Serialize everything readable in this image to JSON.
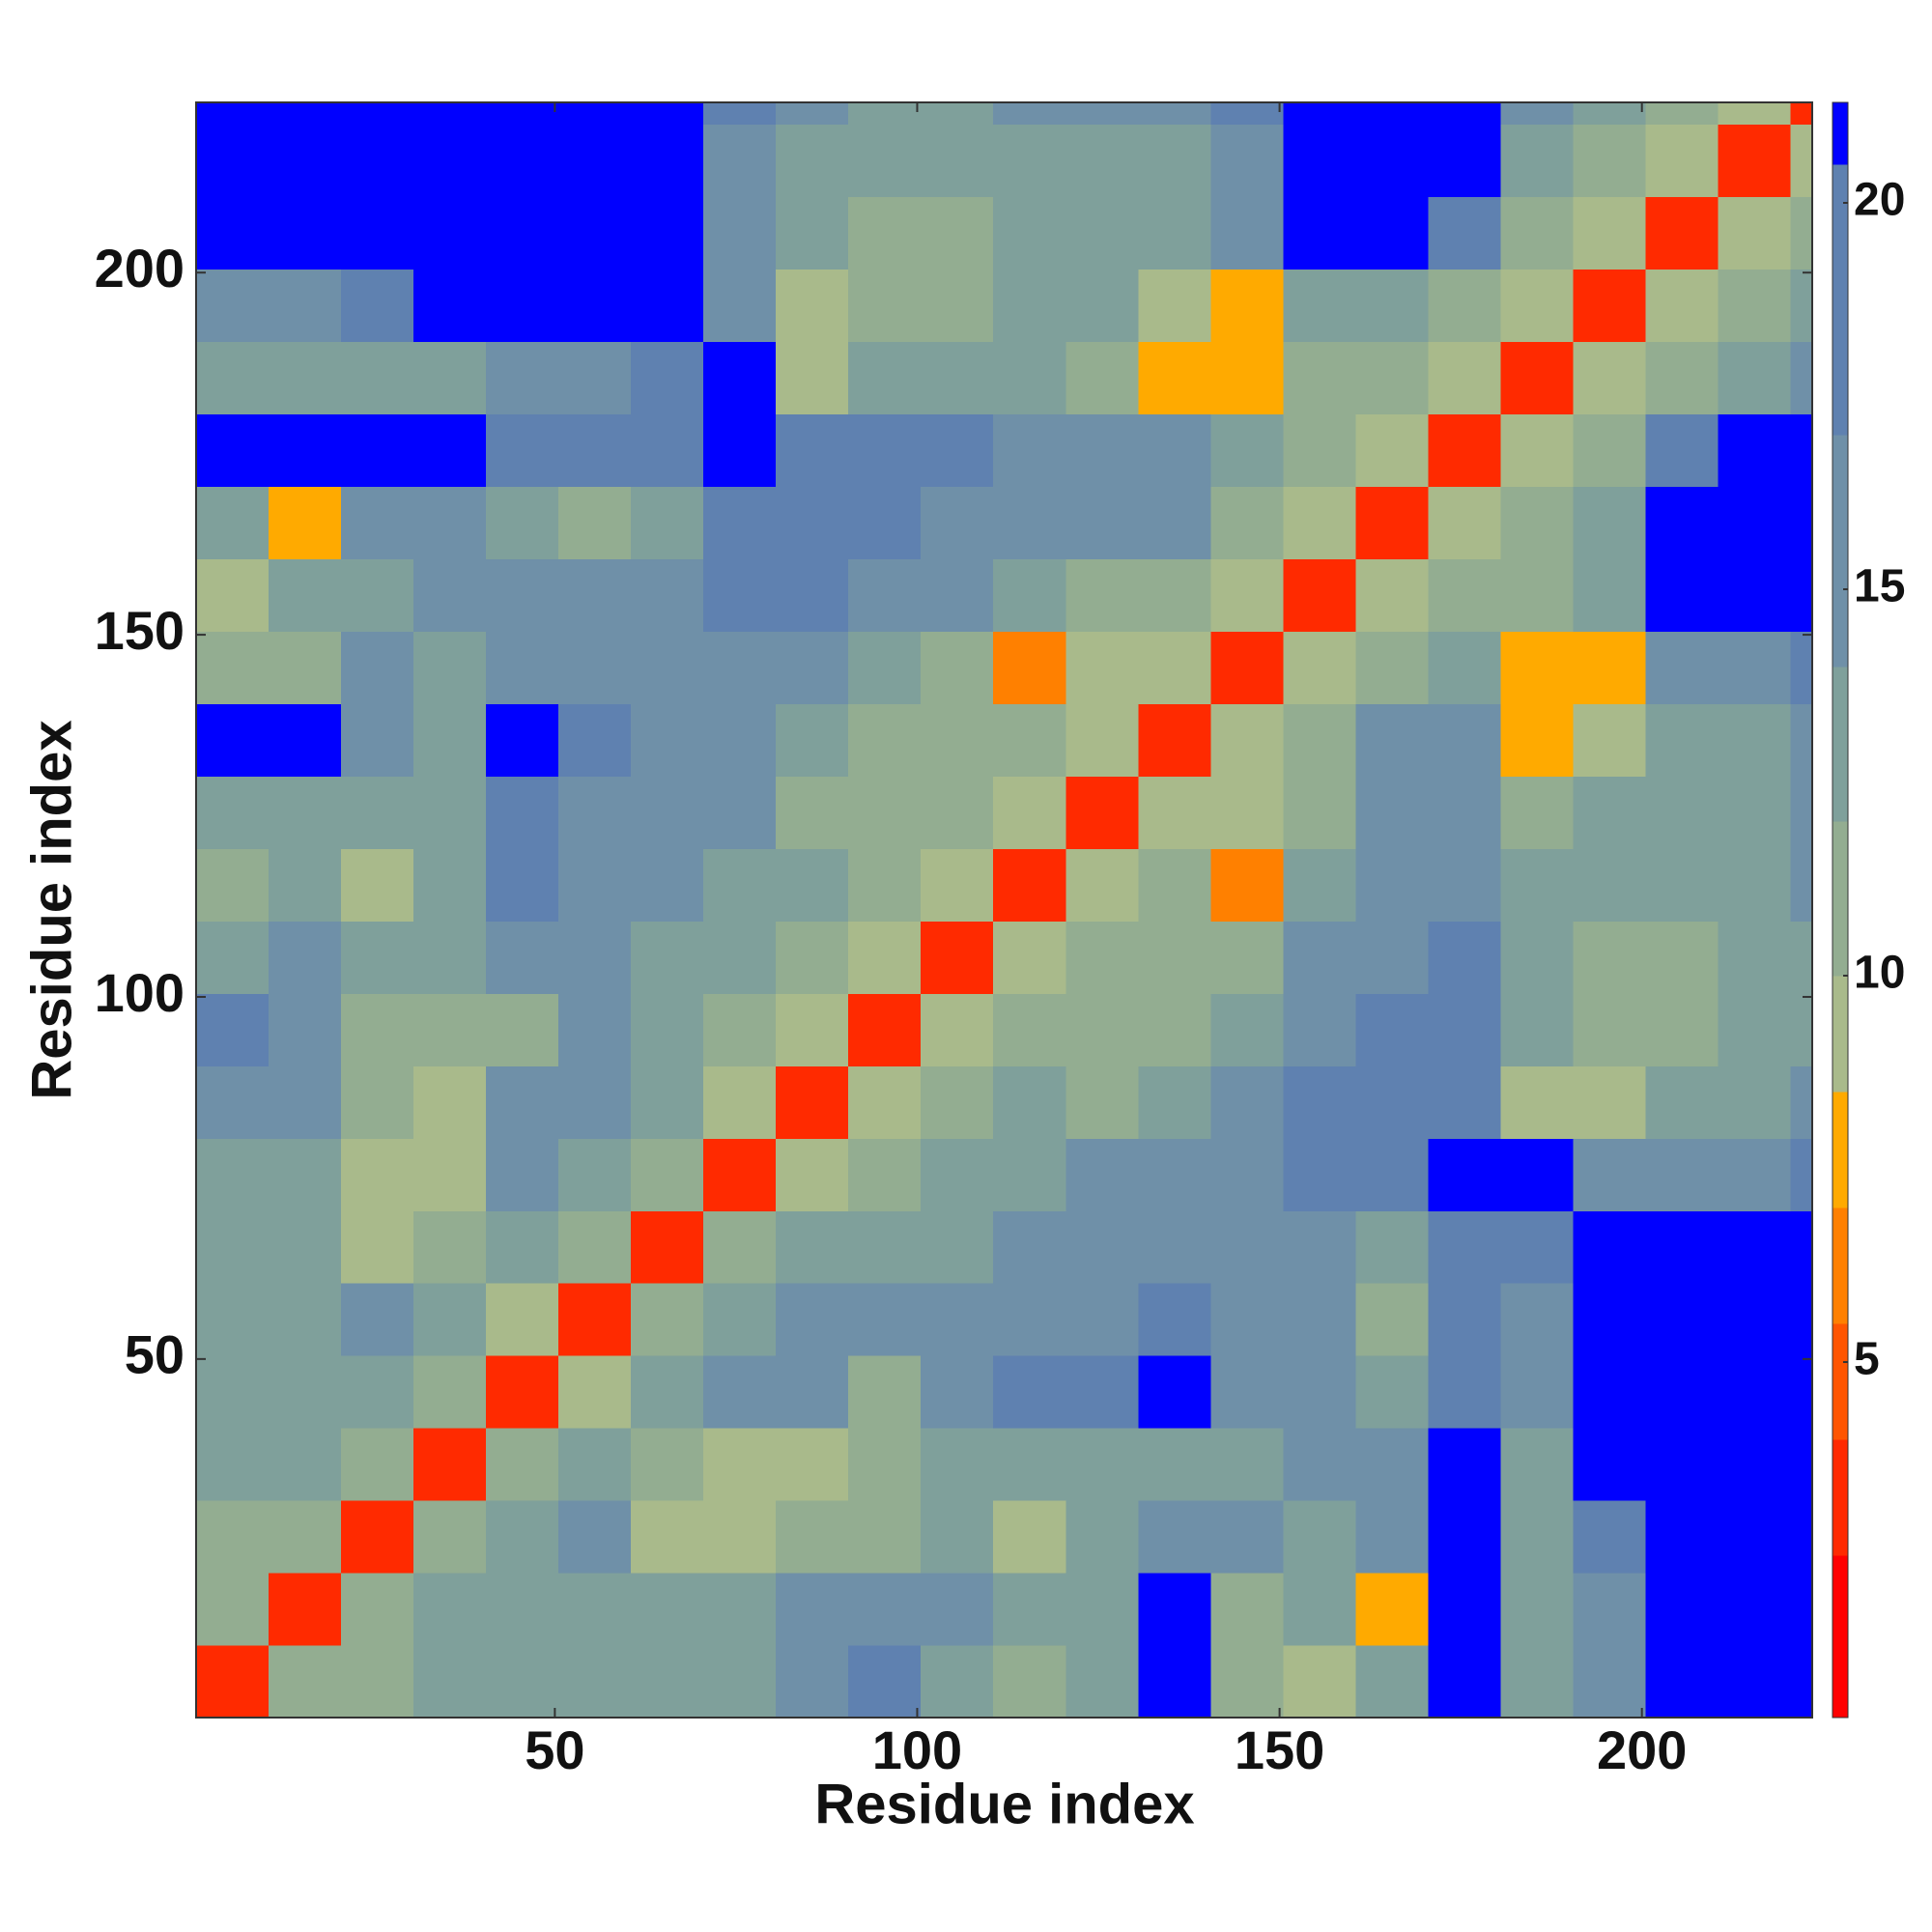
{
  "chart_data": {
    "type": "heatmap",
    "xlabel": "Residue index",
    "ylabel": "Residue index",
    "xlim": [
      0.5,
      223.5
    ],
    "ylim": [
      0.5,
      223.5
    ],
    "xticks": [
      50,
      100,
      150,
      200
    ],
    "yticks": [
      50,
      100,
      150,
      200
    ],
    "xbins": [
      0.5,
      10.5,
      20.5,
      30.5,
      40.5,
      50.5,
      60.5,
      70.5,
      80.5,
      90.5,
      100.5,
      110.5,
      120.5,
      130.5,
      140.5,
      150.5,
      160.5,
      170.5,
      180.5,
      190.5,
      200.5,
      210.5,
      220.5,
      223.5
    ],
    "ybins": [
      0.5,
      10.5,
      20.5,
      30.5,
      40.5,
      50.5,
      60.5,
      70.5,
      80.5,
      90.5,
      100.5,
      110.5,
      120.5,
      130.5,
      140.5,
      150.5,
      160.5,
      170.5,
      180.5,
      190.5,
      200.5,
      210.5,
      220.5,
      223.5
    ],
    "z": [
      [
        4,
        11,
        12,
        14,
        13,
        13,
        14,
        14,
        17,
        19,
        14,
        11,
        14,
        21,
        12,
        10,
        14,
        21,
        13,
        16,
        21,
        21,
        21
      ],
      [
        11,
        4,
        11,
        13,
        14,
        13,
        13,
        13,
        16,
        17,
        16,
        14,
        14,
        21,
        12,
        13,
        8,
        21,
        13,
        17,
        21,
        21,
        21
      ],
      [
        12,
        11,
        4,
        11,
        13,
        15,
        10,
        9,
        11,
        12,
        13,
        10,
        13,
        15,
        15,
        14,
        16,
        21,
        14,
        18,
        21,
        21,
        21
      ],
      [
        14,
        13,
        11,
        4,
        11,
        13,
        11,
        9,
        9,
        12,
        13,
        13,
        13,
        13,
        14,
        17,
        16,
        21,
        14,
        21,
        21,
        21,
        21
      ],
      [
        13,
        14,
        13,
        11,
        4,
        10,
        13,
        15,
        16,
        12,
        17,
        18,
        19,
        21,
        16,
        17,
        14,
        19,
        17,
        21,
        21,
        21,
        21
      ],
      [
        13,
        13,
        15,
        13,
        10,
        4,
        11,
        14,
        16,
        16,
        16,
        17,
        17,
        19,
        16,
        17,
        12,
        19,
        17,
        21,
        21,
        21,
        21
      ],
      [
        14,
        13,
        10,
        11,
        13,
        11,
        4,
        11,
        13,
        13,
        13,
        16,
        17,
        16,
        17,
        16,
        14,
        19,
        19,
        21,
        21,
        21,
        21
      ],
      [
        14,
        13,
        9,
        9,
        15,
        14,
        11,
        4,
        10,
        11,
        13,
        13,
        15,
        16,
        16,
        18,
        19,
        21,
        21,
        17,
        15,
        15,
        19
      ],
      [
        17,
        16,
        11,
        9,
        16,
        16,
        13,
        10,
        4,
        10,
        12,
        13,
        12,
        13,
        16,
        18,
        18,
        19,
        10,
        10,
        14,
        14,
        16
      ],
      [
        19,
        17,
        12,
        12,
        12,
        16,
        13,
        11,
        10,
        4,
        10,
        12,
        12,
        12,
        13,
        17,
        18,
        19,
        13,
        12,
        11,
        13,
        14
      ],
      [
        14,
        16,
        13,
        13,
        17,
        16,
        13,
        13,
        12,
        10,
        4,
        10,
        11,
        12,
        12,
        15,
        16,
        18,
        13,
        12,
        11,
        13,
        14
      ],
      [
        11,
        14,
        10,
        13,
        18,
        17,
        16,
        13,
        13,
        12,
        10,
        4,
        10,
        11,
        7,
        13,
        15,
        17,
        13,
        13,
        14,
        13,
        15
      ],
      [
        14,
        14,
        13,
        13,
        19,
        17,
        17,
        15,
        12,
        12,
        11,
        10,
        4,
        10,
        9,
        12,
        15,
        16,
        12,
        13,
        14,
        14,
        15
      ],
      [
        21,
        21,
        15,
        13,
        21,
        19,
        16,
        16,
        13,
        12,
        12,
        11,
        10,
        4,
        10,
        12,
        15,
        16,
        8,
        9,
        14,
        14,
        16
      ],
      [
        12,
        12,
        15,
        14,
        16,
        16,
        17,
        16,
        16,
        13,
        12,
        7,
        9,
        10,
        4,
        10,
        11,
        13,
        8,
        8,
        16,
        17,
        19
      ],
      [
        10,
        13,
        14,
        17,
        17,
        17,
        16,
        18,
        18,
        17,
        15,
        13,
        12,
        12,
        10,
        4,
        10,
        12,
        12,
        14,
        21,
        21,
        21
      ],
      [
        14,
        8,
        16,
        16,
        14,
        12,
        14,
        19,
        18,
        18,
        16,
        15,
        15,
        15,
        11,
        10,
        4,
        10,
        12,
        13,
        21,
        21,
        21
      ],
      [
        21,
        21,
        21,
        21,
        19,
        19,
        19,
        21,
        19,
        19,
        18,
        17,
        16,
        16,
        13,
        12,
        10,
        4,
        9,
        12,
        19,
        21,
        21
      ],
      [
        13,
        13,
        14,
        14,
        17,
        17,
        19,
        21,
        10,
        13,
        13,
        13,
        12,
        8,
        8,
        12,
        12,
        9,
        4,
        9,
        12,
        14,
        16
      ],
      [
        16,
        17,
        18,
        21,
        21,
        21,
        21,
        17,
        10,
        12,
        12,
        13,
        13,
        9,
        8,
        14,
        13,
        12,
        9,
        4,
        9,
        12,
        13
      ],
      [
        21,
        21,
        21,
        21,
        21,
        21,
        21,
        15,
        14,
        11,
        11,
        14,
        14,
        14,
        16,
        21,
        21,
        19,
        12,
        9,
        4,
        9,
        12
      ],
      [
        21,
        21,
        21,
        21,
        21,
        21,
        21,
        15,
        14,
        13,
        13,
        13,
        14,
        14,
        17,
        21,
        21,
        21,
        14,
        12,
        9,
        4,
        9
      ],
      [
        21,
        21,
        21,
        21,
        21,
        21,
        21,
        19,
        16,
        14,
        14,
        15,
        15,
        16,
        19,
        21,
        21,
        21,
        16,
        13,
        12,
        9,
        4
      ]
    ],
    "zlim": [
      0.4,
      21.3
    ],
    "zticks": [
      5,
      10,
      15,
      20
    ],
    "color_levels": [
      {
        "max": 2.5,
        "color": "#ff0000"
      },
      {
        "max": 4,
        "color": "#ff2a00"
      },
      {
        "max": 5.5,
        "color": "#ff5500"
      },
      {
        "max": 7,
        "color": "#ff8000"
      },
      {
        "max": 8.5,
        "color": "#ffaa00"
      },
      {
        "max": 10,
        "color": "#a9ba8b"
      },
      {
        "max": 12,
        "color": "#93ad91"
      },
      {
        "max": 14,
        "color": "#7fa09b"
      },
      {
        "max": 17,
        "color": "#6f90a8"
      },
      {
        "max": 20.5,
        "color": "#5f81b0"
      },
      {
        "max": 21.3,
        "color": "#0000ff"
      }
    ]
  }
}
